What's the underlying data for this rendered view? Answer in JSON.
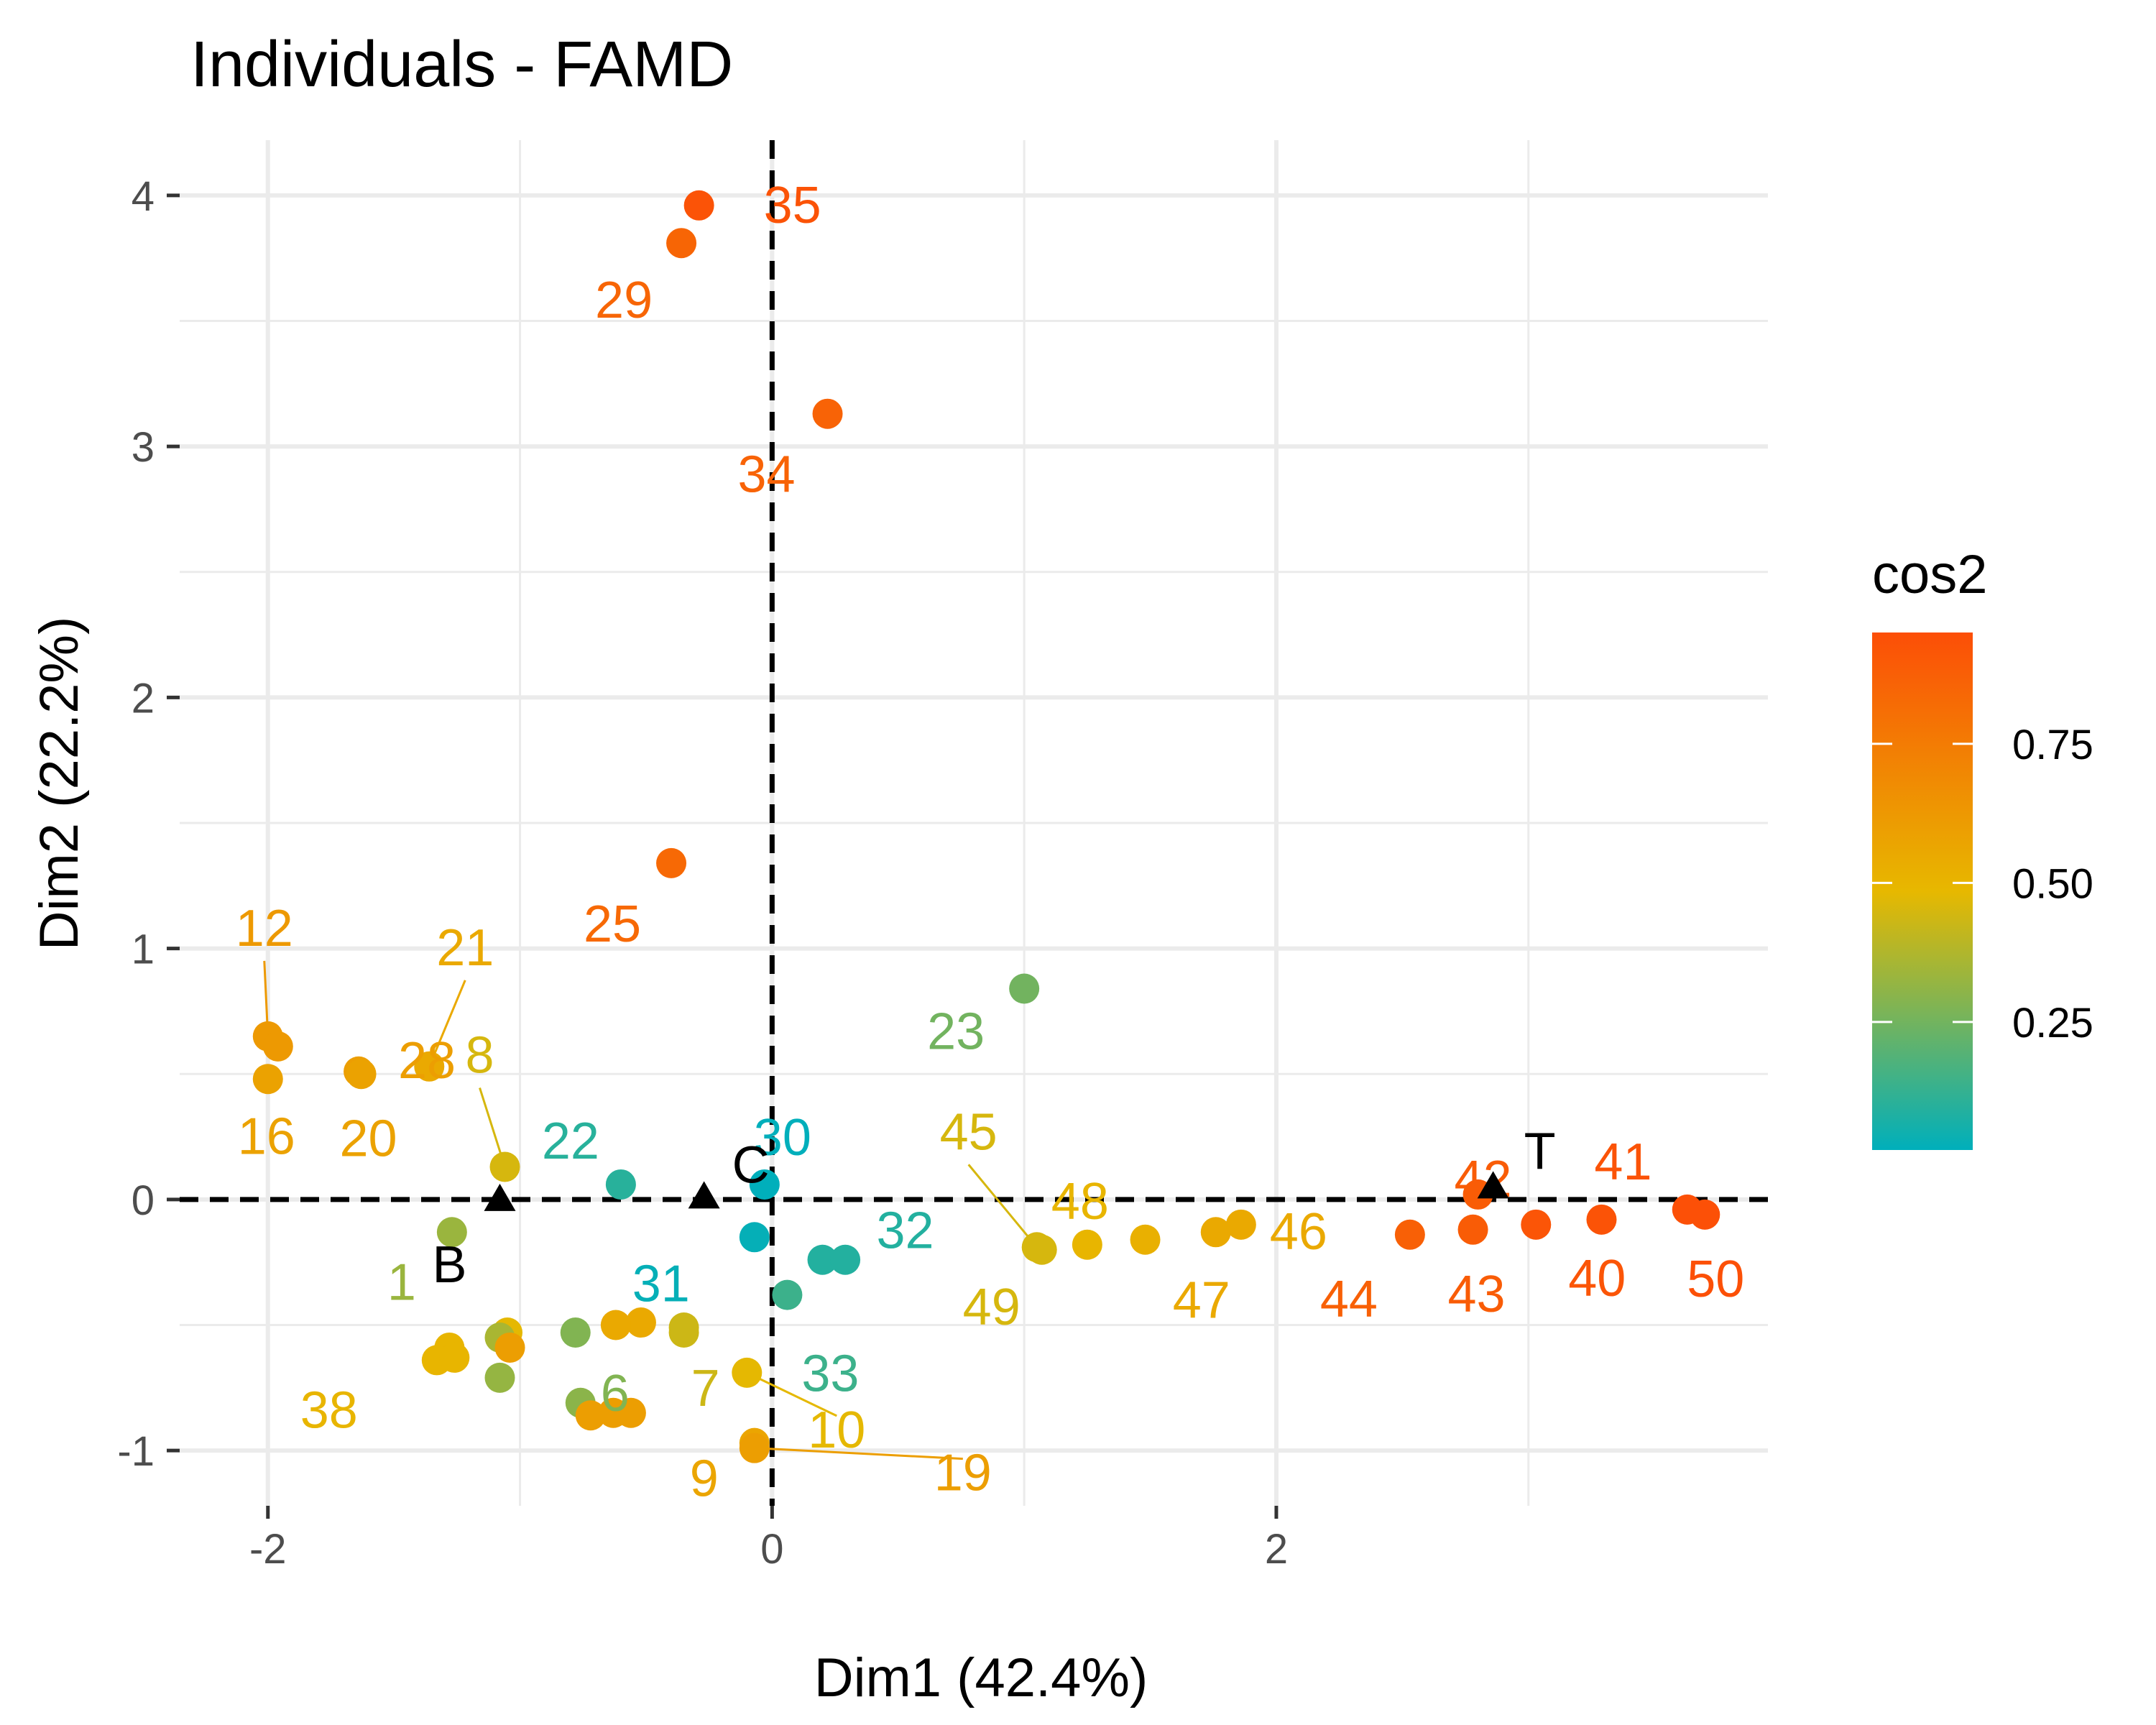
{
  "chart_data": {
    "type": "scatter",
    "title": "Individuals - FAMD",
    "xlabel": "Dim1 (42.4%)",
    "ylabel": "Dim2 (22.2%)",
    "xlim": [
      -2.35,
      3.95
    ],
    "ylim": [
      -1.22,
      4.22
    ],
    "x_ticks": [
      -2,
      0,
      2
    ],
    "y_ticks": [
      -1,
      0,
      1,
      2,
      3,
      4
    ],
    "grid": true,
    "reference_lines": {
      "x": 0,
      "y": 0,
      "style": "dashed"
    },
    "legend": {
      "title": "cos2",
      "placement": "right",
      "ticks": [
        0.25,
        0.5,
        0.75
      ],
      "tick_labels": [
        "0.25",
        "0.50",
        "0.75"
      ],
      "range": [
        0.02,
        0.95
      ],
      "colors": [
        "#00AFBB",
        "#E7B800",
        "#FC4E07"
      ]
    },
    "points": [
      {
        "label": "35",
        "x": -0.29,
        "y": 3.96,
        "cos2": 0.93
      },
      {
        "label": "29",
        "x": -0.36,
        "y": 3.81,
        "cos2": 0.85
      },
      {
        "label": "34",
        "x": 0.22,
        "y": 3.13,
        "cos2": 0.86
      },
      {
        "label": "25",
        "x": -0.4,
        "y": 1.34,
        "cos2": 0.83
      },
      {
        "label": "12",
        "x": -2.0,
        "y": 0.65,
        "cos2": 0.62
      },
      {
        "label": "",
        "x": -1.96,
        "y": 0.61,
        "cos2": 0.62
      },
      {
        "label": "28",
        "x": -1.64,
        "y": 0.51,
        "cos2": 0.6
      },
      {
        "label": "21",
        "x": -1.36,
        "y": 0.53,
        "cos2": 0.55
      },
      {
        "label": "16",
        "x": -2.0,
        "y": 0.48,
        "cos2": 0.58
      },
      {
        "label": "20",
        "x": -1.63,
        "y": 0.5,
        "cos2": 0.58
      },
      {
        "label": "8",
        "x": -1.06,
        "y": 0.13,
        "cos2": 0.45
      },
      {
        "label": "22",
        "x": -0.6,
        "y": 0.06,
        "cos2": 0.1
      },
      {
        "label": "30",
        "x": -0.03,
        "y": 0.06,
        "cos2": 0.02
      },
      {
        "label": "31",
        "x": -0.07,
        "y": -0.15,
        "cos2": 0.03
      },
      {
        "label": "32",
        "x": 0.2,
        "y": -0.24,
        "cos2": 0.09
      },
      {
        "label": "",
        "x": 0.29,
        "y": -0.24,
        "cos2": 0.09
      },
      {
        "label": "33",
        "x": 0.06,
        "y": -0.38,
        "cos2": 0.14
      },
      {
        "label": "23",
        "x": 1.0,
        "y": 0.84,
        "cos2": 0.25
      },
      {
        "label": "1",
        "x": -1.27,
        "y": -0.13,
        "cos2": 0.33
      },
      {
        "label": "45",
        "x": 1.05,
        "y": -0.19,
        "cos2": 0.45
      },
      {
        "label": "49",
        "x": 1.07,
        "y": -0.2,
        "cos2": 0.45
      },
      {
        "label": "48",
        "x": 1.25,
        "y": -0.18,
        "cos2": 0.5
      },
      {
        "label": "",
        "x": 1.48,
        "y": -0.16,
        "cos2": 0.52
      },
      {
        "label": "47",
        "x": 1.76,
        "y": -0.13,
        "cos2": 0.55
      },
      {
        "label": "46",
        "x": 1.86,
        "y": -0.1,
        "cos2": 0.55
      },
      {
        "label": "44",
        "x": 2.53,
        "y": -0.14,
        "cos2": 0.87
      },
      {
        "label": "43",
        "x": 2.78,
        "y": -0.12,
        "cos2": 0.89
      },
      {
        "label": "42",
        "x": 2.8,
        "y": 0.02,
        "cos2": 0.89
      },
      {
        "label": "40",
        "x": 3.03,
        "y": -0.1,
        "cos2": 0.92
      },
      {
        "label": "41",
        "x": 3.29,
        "y": -0.08,
        "cos2": 0.93
      },
      {
        "label": "",
        "x": 3.63,
        "y": -0.04,
        "cos2": 0.94
      },
      {
        "label": "50",
        "x": 3.7,
        "y": -0.06,
        "cos2": 0.94
      },
      {
        "label": "7",
        "x": -0.35,
        "y": -0.51,
        "cos2": 0.43
      },
      {
        "label": "",
        "x": -0.35,
        "y": -0.53,
        "cos2": 0.43
      },
      {
        "label": "",
        "x": -0.52,
        "y": -0.49,
        "cos2": 0.55
      },
      {
        "label": "",
        "x": -0.62,
        "y": -0.5,
        "cos2": 0.55
      },
      {
        "label": "6",
        "x": -0.78,
        "y": -0.53,
        "cos2": 0.28
      },
      {
        "label": "",
        "x": -1.05,
        "y": -0.53,
        "cos2": 0.48
      },
      {
        "label": "",
        "x": -1.08,
        "y": -0.55,
        "cos2": 0.36
      },
      {
        "label": "",
        "x": -1.04,
        "y": -0.59,
        "cos2": 0.6
      },
      {
        "label": "",
        "x": -1.28,
        "y": -0.59,
        "cos2": 0.5
      },
      {
        "label": "38",
        "x": -1.33,
        "y": -0.64,
        "cos2": 0.5
      },
      {
        "label": "",
        "x": -1.26,
        "y": -0.63,
        "cos2": 0.5
      },
      {
        "label": "",
        "x": -1.08,
        "y": -0.71,
        "cos2": 0.32
      },
      {
        "label": "",
        "x": -0.76,
        "y": -0.81,
        "cos2": 0.3
      },
      {
        "label": "",
        "x": -0.72,
        "y": -0.86,
        "cos2": 0.6
      },
      {
        "label": "",
        "x": -0.63,
        "y": -0.85,
        "cos2": 0.6
      },
      {
        "label": "",
        "x": -0.56,
        "y": -0.85,
        "cos2": 0.6
      },
      {
        "label": "10",
        "x": -0.1,
        "y": -0.69,
        "cos2": 0.48
      },
      {
        "label": "9",
        "x": -0.07,
        "y": -0.97,
        "cos2": 0.57
      },
      {
        "label": "19",
        "x": -0.07,
        "y": -0.99,
        "cos2": 0.6
      }
    ],
    "supplementary": [
      {
        "label": "B",
        "x": -1.08,
        "y": 0.0
      },
      {
        "label": "C",
        "x": -0.27,
        "y": 0.01
      },
      {
        "label": "T",
        "x": 2.86,
        "y": 0.05
      }
    ]
  }
}
